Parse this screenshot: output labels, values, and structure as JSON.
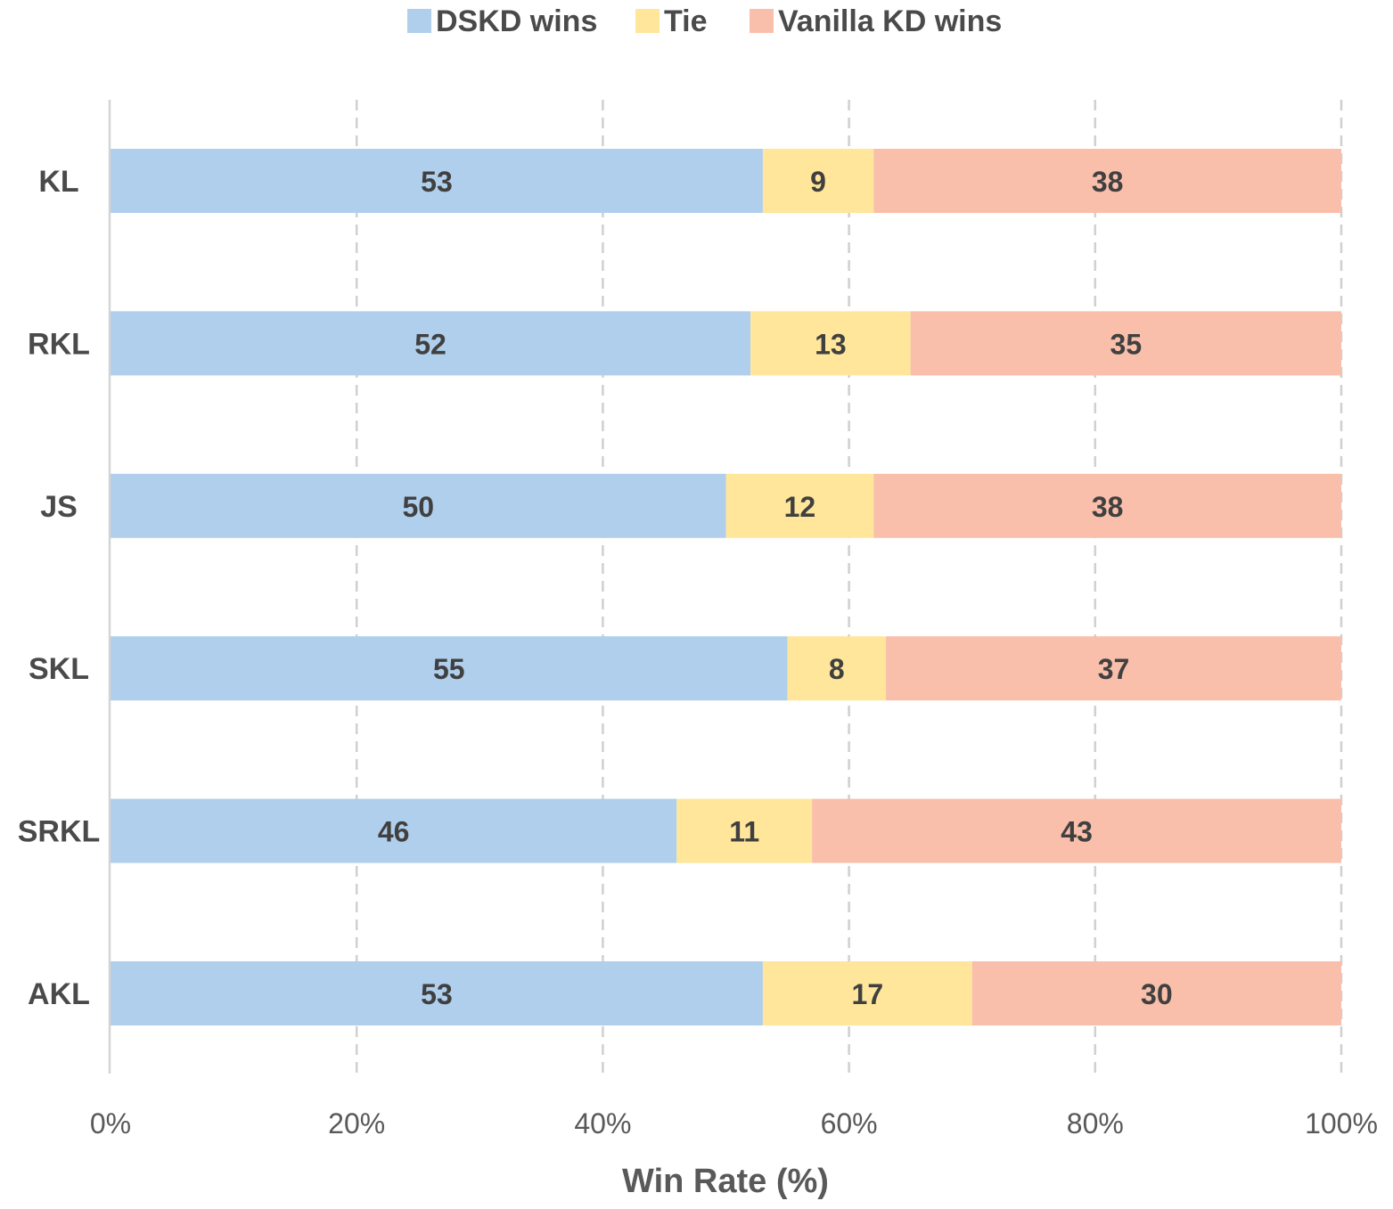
{
  "chart_data": {
    "type": "bar",
    "orientation": "horizontal",
    "stacked": true,
    "categories": [
      "KL",
      "RKL",
      "JS",
      "SKL",
      "SRKL",
      "AKL"
    ],
    "series": [
      {
        "name": "DSKD wins",
        "color": "#b0cfec",
        "values": [
          53,
          52,
          50,
          55,
          46,
          53
        ]
      },
      {
        "name": "Tie",
        "color": "#ffe69a",
        "values": [
          9,
          13,
          12,
          8,
          11,
          17
        ]
      },
      {
        "name": "Vanilla KD wins",
        "color": "#f9bfaa",
        "values": [
          38,
          35,
          38,
          37,
          43,
          30
        ]
      }
    ],
    "xlabel": "Win Rate (%)",
    "xlim": [
      0,
      100
    ],
    "xticks": [
      "0%",
      "20%",
      "40%",
      "60%",
      "80%",
      "100%"
    ],
    "grid": "vertical dashed",
    "legend": "top-center"
  }
}
